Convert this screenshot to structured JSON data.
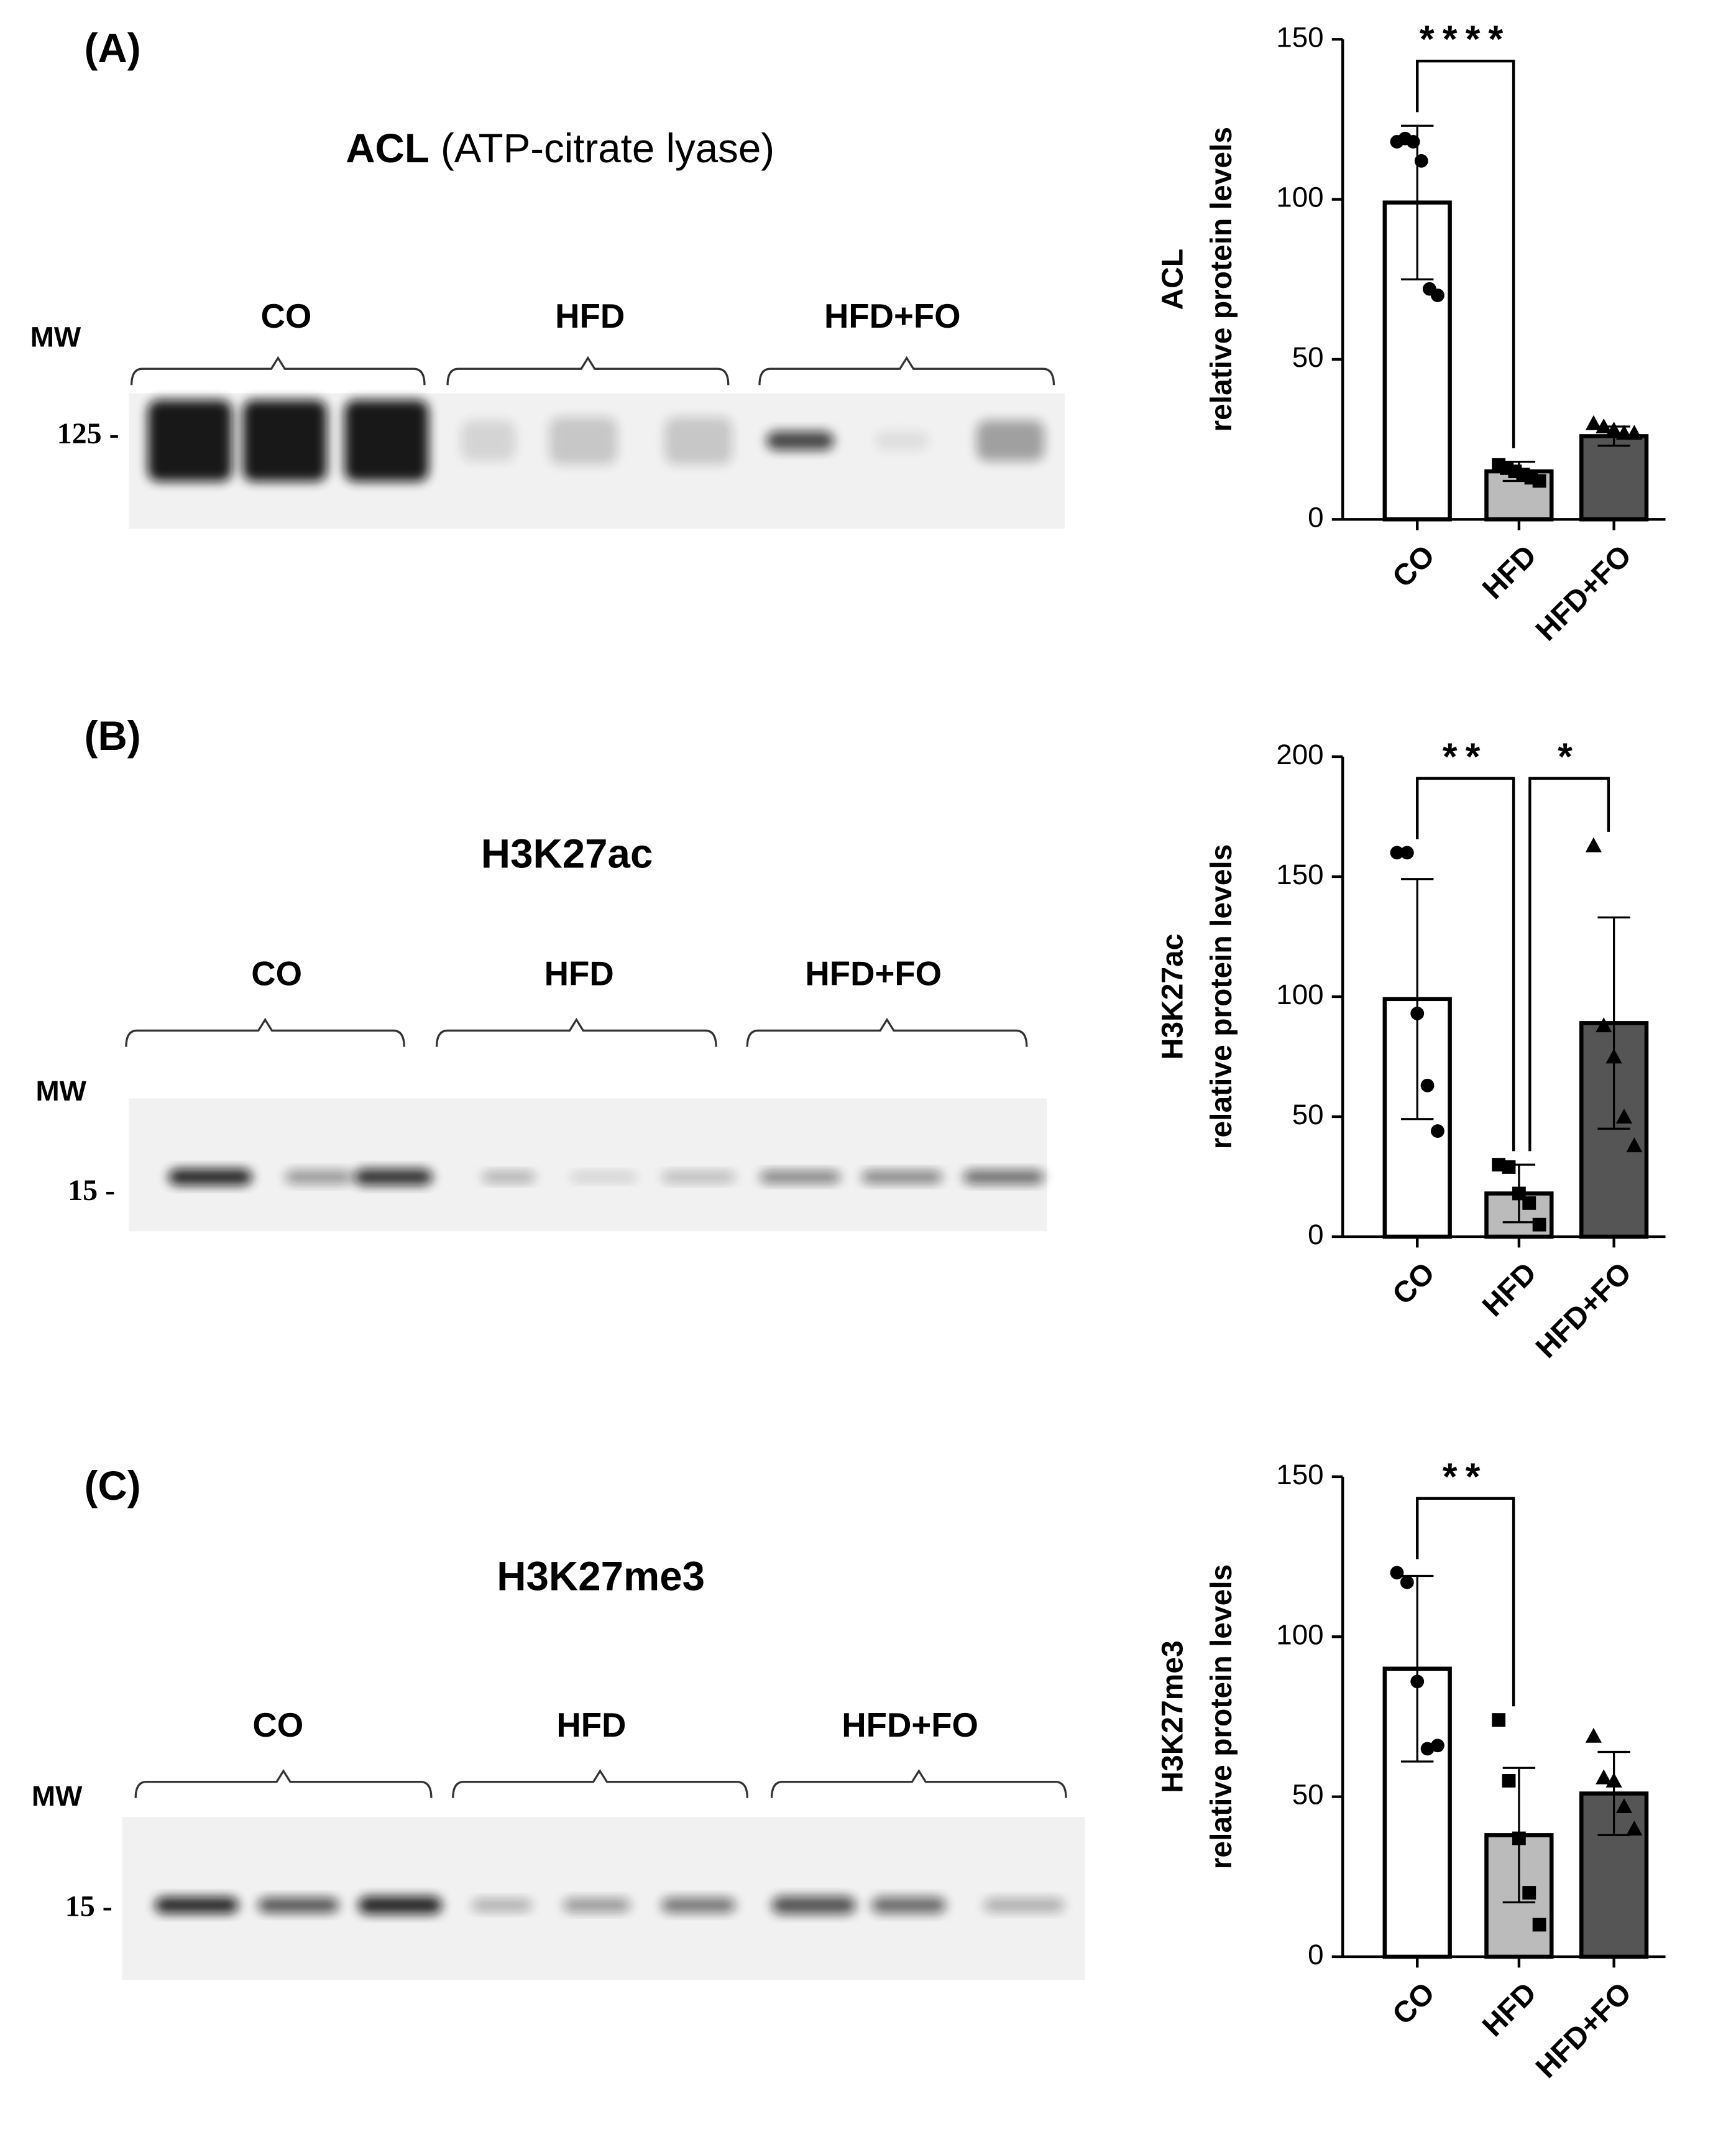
{
  "chart_data": [
    {
      "type": "bar",
      "panel_label": "(A)",
      "blot_title": "ACL",
      "blot_subtitle": "(ATP-citrate lyase)",
      "blot_groups": [
        "CO",
        "HFD",
        "HFD+FO"
      ],
      "mw_label": "MW",
      "mw_marker": "125 -",
      "ylabel": [
        "ACL",
        "relative protein levels"
      ],
      "categories": [
        "CO",
        "HFD",
        "HFD+FO"
      ],
      "values": [
        99,
        15,
        26
      ],
      "errors": [
        24,
        3,
        3
      ],
      "points": [
        [
          118,
          119,
          118,
          112,
          72,
          70
        ],
        [
          17,
          16,
          15,
          14,
          13,
          12
        ],
        [
          30,
          29,
          28,
          27,
          27
        ]
      ],
      "colors": [
        "#ffffff",
        "#bbbbbb",
        "#555555"
      ],
      "markers": [
        "circle",
        "square",
        "triangle"
      ],
      "ylim": [
        0,
        150
      ],
      "yticks": [
        0,
        50,
        100,
        150
      ],
      "significance": [
        {
          "label": "****",
          "from": 0,
          "to": 1
        }
      ]
    },
    {
      "type": "bar",
      "panel_label": "(B)",
      "blot_title": "H3K27ac",
      "blot_groups": [
        "CO",
        "HFD",
        "HFD+FO"
      ],
      "mw_label": "MW",
      "mw_marker": "15 -",
      "ylabel": [
        "H3K27ac",
        "relative protein levels"
      ],
      "categories": [
        "CO",
        "HFD",
        "HFD+FO"
      ],
      "values": [
        99,
        18,
        89
      ],
      "errors": [
        50,
        12,
        44
      ],
      "points": [
        [
          160,
          160,
          93,
          63,
          44
        ],
        [
          30,
          29,
          18,
          14,
          5
        ],
        [
          163,
          88,
          75,
          50,
          38
        ]
      ],
      "colors": [
        "#ffffff",
        "#bbbbbb",
        "#555555"
      ],
      "markers": [
        "circle",
        "square",
        "triangle"
      ],
      "ylim": [
        0,
        200
      ],
      "yticks": [
        0,
        50,
        100,
        150,
        200
      ],
      "significance": [
        {
          "label": "**",
          "from": 0,
          "to": 1
        },
        {
          "label": "*",
          "from": 1,
          "to": 2
        }
      ]
    },
    {
      "type": "bar",
      "panel_label": "(C)",
      "blot_title": "H3K27me3",
      "blot_groups": [
        "CO",
        "HFD",
        "HFD+FO"
      ],
      "mw_label": "MW",
      "mw_marker": "15 -",
      "ylabel": [
        "H3K27me3",
        "relative protein levels"
      ],
      "categories": [
        "CO",
        "HFD",
        "HFD+FO"
      ],
      "values": [
        90,
        38,
        51
      ],
      "errors": [
        29,
        21,
        13
      ],
      "points": [
        [
          120,
          117,
          86,
          65,
          66
        ],
        [
          74,
          55,
          37,
          20,
          10
        ],
        [
          69,
          56,
          55,
          47,
          40
        ]
      ],
      "colors": [
        "#ffffff",
        "#bbbbbb",
        "#555555"
      ],
      "markers": [
        "circle",
        "square",
        "triangle"
      ],
      "ylim": [
        0,
        150
      ],
      "yticks": [
        0,
        50,
        100,
        150
      ],
      "significance": [
        {
          "label": "**",
          "from": 0,
          "to": 1
        }
      ]
    }
  ]
}
